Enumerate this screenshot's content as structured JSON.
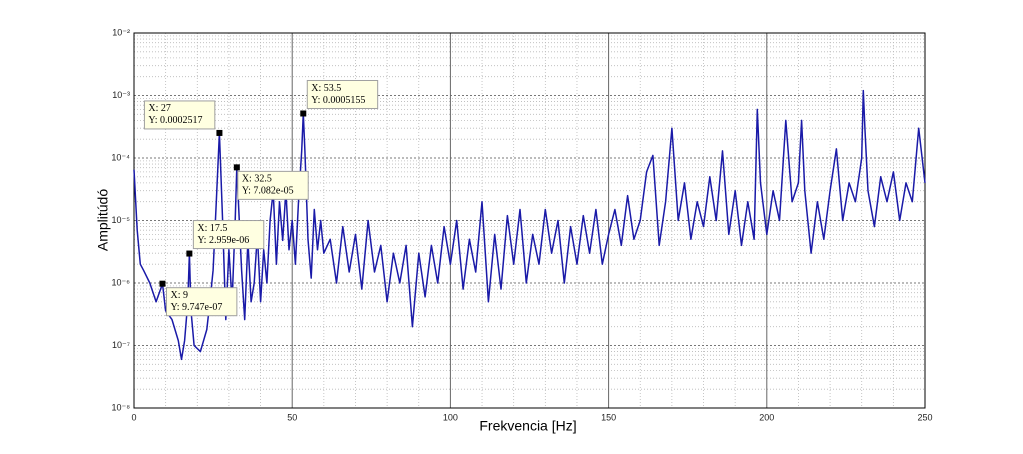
{
  "chart_data": {
    "type": "line",
    "xlabel": "Frekvencia [Hz]",
    "ylabel": "Amplitúdó",
    "color": "#1a1aa8",
    "log_y": true,
    "grid": true,
    "minor_grid": true,
    "xlim": [
      0,
      250
    ],
    "xticks": [
      0,
      50,
      100,
      150,
      200,
      250
    ],
    "ylim": [
      1e-08,
      0.01
    ],
    "yticks": [
      {
        "value": 1e-08,
        "label": "10⁻⁸"
      },
      {
        "value": 1e-07,
        "label": "10⁻⁷"
      },
      {
        "value": 1e-06,
        "label": "10⁻⁶"
      },
      {
        "value": 1e-05,
        "label": "10⁻⁵"
      },
      {
        "value": 0.0001,
        "label": "10⁻⁴"
      },
      {
        "value": 0.001,
        "label": "10⁻³"
      },
      {
        "value": 0.01,
        "label": "10⁻²"
      }
    ],
    "x": [
      0,
      1,
      2,
      3,
      5,
      7,
      9,
      10,
      12,
      14,
      15,
      16,
      17,
      17.5,
      18,
      19,
      21,
      23,
      24,
      25,
      26,
      27,
      28,
      29,
      30,
      31,
      32,
      32.5,
      33,
      34,
      35,
      36,
      37,
      38,
      39,
      40,
      41,
      42,
      43,
      44,
      45,
      46,
      47,
      48,
      49,
      50,
      51,
      52,
      53,
      53.5,
      54,
      55,
      56,
      57,
      58,
      59,
      60,
      62,
      64,
      66,
      68,
      70,
      72,
      74,
      76,
      78,
      80,
      82,
      84,
      86,
      88,
      90,
      92,
      94,
      96,
      98,
      100,
      102,
      104,
      106,
      108,
      110,
      112,
      114,
      116,
      118,
      120,
      122,
      124,
      126,
      128,
      130,
      132,
      134,
      136,
      138,
      140,
      142,
      144,
      146,
      148,
      150,
      152,
      154,
      156,
      158,
      160,
      162,
      164,
      166,
      168,
      170,
      172,
      174,
      176,
      178,
      180,
      182,
      184,
      186,
      188,
      190,
      192,
      194,
      196,
      197,
      198,
      200,
      202,
      204,
      206,
      208,
      210,
      211,
      212,
      214,
      216,
      218,
      220,
      222,
      224,
      226,
      228,
      230,
      230.5,
      231,
      232,
      234,
      236,
      238,
      240,
      242,
      244,
      246,
      248,
      250
    ],
    "values": [
      6.5e-05,
      7e-06,
      2e-06,
      1.6e-06,
      1e-06,
      5e-07,
      9.747e-07,
      3.6e-07,
      2.6e-07,
      1.2e-07,
      6e-08,
      1.2e-07,
      5e-07,
      2.959e-06,
      3.6e-07,
      1e-07,
      8e-08,
      1.8e-07,
      5e-07,
      1.6e-06,
      2e-05,
      0.0002517,
      1e-05,
      2.6e-07,
      3.4e-06,
      5e-07,
      1e-05,
      7.082e-05,
      2e-05,
      1.6e-06,
      2.6e-07,
      4.8e-06,
      5e-07,
      1e-06,
      6e-06,
      5e-07,
      3.4e-06,
      1e-06,
      1e-05,
      3e-05,
      2e-06,
      2e-05,
      4.8e-06,
      3e-05,
      3.4e-06,
      1e-05,
      2e-06,
      2e-05,
      0.00013,
      0.0005155,
      0.00013,
      5e-06,
      1.2e-06,
      1.5e-05,
      3.4e-06,
      1e-05,
      3e-06,
      5e-06,
      1e-06,
      8e-06,
      1.5e-06,
      6e-06,
      8e-07,
      1e-05,
      1.5e-06,
      4e-06,
      5e-07,
      3e-06,
      1e-06,
      4e-06,
      2e-07,
      3e-06,
      6e-07,
      4e-06,
      1e-06,
      8e-06,
      2e-06,
      1e-05,
      8e-07,
      5e-06,
      1.5e-06,
      2e-05,
      5e-07,
      6e-06,
      8e-07,
      1.2e-05,
      2e-06,
      1.5e-05,
      1e-06,
      6e-06,
      2e-06,
      1.5e-05,
      3e-06,
      1e-05,
      1e-06,
      8e-06,
      2e-06,
      1.2e-05,
      3e-06,
      1.5e-05,
      2e-06,
      6e-06,
      1.5e-05,
      4e-06,
      2.5e-05,
      5e-06,
      1e-05,
      6e-05,
      0.00011,
      4e-06,
      2e-05,
      0.0003,
      1e-05,
      4e-05,
      5e-06,
      2e-05,
      8e-06,
      5e-05,
      1e-05,
      0.00013,
      6e-06,
      3e-05,
      4e-06,
      2e-05,
      5e-06,
      0.0006,
      4e-05,
      6e-06,
      3e-05,
      1e-05,
      0.0004,
      2e-05,
      4e-05,
      0.0004,
      3e-05,
      3e-06,
      2e-05,
      5e-06,
      3e-05,
      0.00014,
      1e-05,
      4e-05,
      2e-05,
      0.0001,
      0.0012,
      0.0003,
      3e-05,
      8e-06,
      5e-05,
      2e-05,
      6e-05,
      1e-05,
      4e-05,
      2e-05,
      0.0003,
      4e-05
    ],
    "datatips": [
      {
        "x": 9,
        "y": 9.747e-07,
        "x_label": "X: 9",
        "y_label": "Y: 9.747e-07"
      },
      {
        "x": 17.5,
        "y": 2.959e-06,
        "x_label": "X: 17.5",
        "y_label": "Y: 2.959e-06"
      },
      {
        "x": 27,
        "y": 0.0002517,
        "x_label": "X: 27",
        "y_label": "Y: 0.0002517"
      },
      {
        "x": 32.5,
        "y": 7.082e-05,
        "x_label": "X: 32.5",
        "y_label": "Y: 7.082e-05"
      },
      {
        "x": 53.5,
        "y": 0.0005155,
        "x_label": "X: 53.5",
        "y_label": "Y: 0.0005155"
      }
    ]
  }
}
